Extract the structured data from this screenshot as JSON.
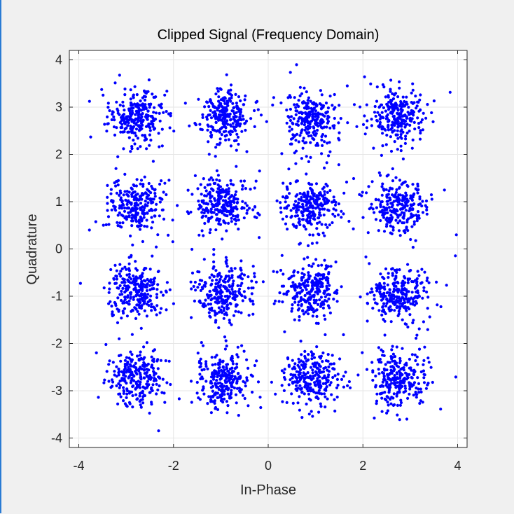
{
  "chart_data": {
    "type": "scatter",
    "title": "Clipped Signal (Frequency Domain)",
    "xlabel": "In-Phase",
    "ylabel": "Quadrature",
    "xlim": [
      -4.2,
      4.2
    ],
    "ylim": [
      -4.2,
      4.2
    ],
    "xticks": [
      -4,
      -2,
      0,
      2,
      4
    ],
    "yticks": [
      4,
      3,
      2,
      1,
      0,
      -1,
      -2,
      -3,
      -4
    ],
    "xtick_labels": [
      "-4",
      "-2",
      "0",
      "2",
      "4"
    ],
    "ytick_labels": [
      "4",
      "3",
      "2",
      "1",
      "0",
      "-1",
      "-2",
      "-3",
      "-4"
    ],
    "grid": true,
    "marker_color": "#0000ff",
    "clusters": [
      {
        "x": -2.8,
        "y": 2.8
      },
      {
        "x": -0.95,
        "y": 2.8
      },
      {
        "x": 0.9,
        "y": 2.75
      },
      {
        "x": 2.75,
        "y": 2.8
      },
      {
        "x": -2.8,
        "y": 0.9
      },
      {
        "x": -0.95,
        "y": 0.95
      },
      {
        "x": 0.9,
        "y": 0.9
      },
      {
        "x": 2.75,
        "y": 0.9
      },
      {
        "x": -2.8,
        "y": -0.9
      },
      {
        "x": -0.95,
        "y": -0.9
      },
      {
        "x": 0.9,
        "y": -0.9
      },
      {
        "x": 2.75,
        "y": -0.95
      },
      {
        "x": -2.8,
        "y": -2.75
      },
      {
        "x": -0.95,
        "y": -2.75
      },
      {
        "x": 0.9,
        "y": -2.75
      },
      {
        "x": 2.75,
        "y": -2.75
      }
    ],
    "cluster_spread": 0.28,
    "points_per_cluster": 260
  }
}
